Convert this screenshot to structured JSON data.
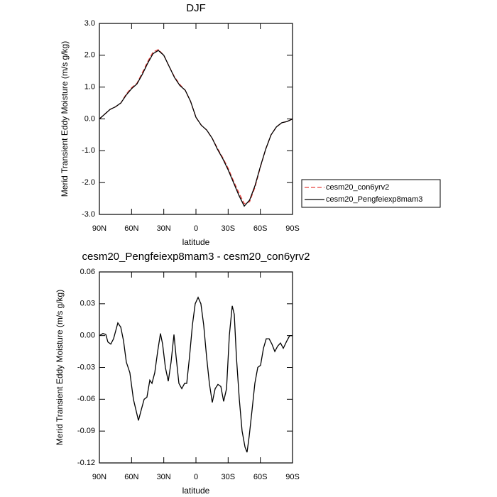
{
  "chart_data": [
    {
      "type": "line",
      "title": "DJF",
      "x_label": "latitude",
      "y_label": "Merid Transient Eddy Moisture (m/s g/kg)",
      "x": [
        90,
        85,
        80,
        75,
        70,
        65,
        60,
        55,
        50,
        45,
        40,
        35,
        30,
        25,
        20,
        15,
        10,
        5,
        0,
        -5,
        -10,
        -15,
        -20,
        -25,
        -30,
        -35,
        -40,
        -45,
        -50,
        -55,
        -60,
        -65,
        -70,
        -75,
        -80,
        -85,
        -90
      ],
      "series": [
        {
          "name": "cesm20_con6yrv2",
          "color": "#e8403c",
          "dashed": true,
          "values": [
            0.0,
            0.15,
            0.3,
            0.38,
            0.5,
            0.78,
            0.98,
            1.12,
            1.45,
            1.8,
            2.1,
            2.18,
            2.0,
            1.65,
            1.32,
            1.08,
            0.9,
            0.55,
            0.05,
            -0.2,
            -0.35,
            -0.6,
            -0.92,
            -1.22,
            -1.55,
            -1.95,
            -2.32,
            -2.66,
            -2.6,
            -2.15,
            -1.52,
            -0.95,
            -0.5,
            -0.25,
            -0.12,
            -0.08,
            0.0
          ]
        },
        {
          "name": "cesm20_Pengfeiexp8mam3",
          "color": "#000000",
          "dashed": false,
          "values": [
            0.0,
            0.15,
            0.3,
            0.38,
            0.5,
            0.75,
            0.95,
            1.1,
            1.4,
            1.75,
            2.05,
            2.15,
            2.0,
            1.65,
            1.3,
            1.05,
            0.9,
            0.55,
            0.05,
            -0.2,
            -0.35,
            -0.6,
            -0.95,
            -1.25,
            -1.6,
            -2.0,
            -2.4,
            -2.74,
            -2.55,
            -2.1,
            -1.5,
            -0.95,
            -0.5,
            -0.25,
            -0.12,
            -0.08,
            0.0
          ]
        }
      ],
      "xlim": [
        90,
        -90
      ],
      "xticks": [
        {
          "value": 90,
          "label": "90N"
        },
        {
          "value": 60,
          "label": "60N"
        },
        {
          "value": 30,
          "label": "30N"
        },
        0,
        {
          "value": -30,
          "label": "30S"
        },
        {
          "value": -60,
          "label": "60S"
        },
        {
          "value": -90,
          "label": "90S"
        }
      ],
      "ylim": [
        -3,
        3
      ],
      "yticks": [
        {
          "value": 3,
          "label": "3.0"
        },
        {
          "value": 2,
          "label": "2.0"
        },
        {
          "value": 1,
          "label": "1.0"
        },
        {
          "value": 0,
          "label": "0.0"
        },
        {
          "value": -1,
          "label": "-1.0"
        },
        {
          "value": -2,
          "label": "-2.0"
        },
        {
          "value": -3,
          "label": "-3.0"
        }
      ],
      "legend": "right"
    },
    {
      "type": "line",
      "title": "cesm20_Pengfeiexp8mam3 - cesm20_con6yrv2",
      "x_label": "latitude",
      "y_label": "Merid Transient Eddy Moisture (m/s g/kg)",
      "x": [
        90,
        86.7,
        84.0,
        82.1,
        79.4,
        76.8,
        72.8,
        70.1,
        67.5,
        64.9,
        61.6,
        58.3,
        53.6,
        51.0,
        48.3,
        45.7,
        43.0,
        41.0,
        38.4,
        35.7,
        33.1,
        31.1,
        28.5,
        25.8,
        23.2,
        20.5,
        18.5,
        15.9,
        13.2,
        10.6,
        8.6,
        6.0,
        3.3,
        0.7,
        -2.0,
        -4.6,
        -7.2,
        -9.9,
        -12.5,
        -15.2,
        -17.9,
        -20.5,
        -23.2,
        -25.8,
        -28.5,
        -31.1,
        -33.8,
        -35.7,
        -37.7,
        -40.4,
        -43.0,
        -45.7,
        -47.6,
        -49.6,
        -52.3,
        -54.9,
        -57.6,
        -60.2,
        -62.9,
        -65.5,
        -68.2,
        -70.8,
        -73.5,
        -76.1,
        -78.8,
        -81.4,
        -84.7,
        -87.4,
        -90
      ],
      "series": [
        {
          "color": "#000000",
          "dashed": false,
          "values": [
            0.0,
            0.002,
            0.001,
            -0.006,
            -0.008,
            -0.003,
            0.012,
            0.008,
            -0.005,
            -0.025,
            -0.035,
            -0.06,
            -0.08,
            -0.07,
            -0.06,
            -0.058,
            -0.042,
            -0.045,
            -0.035,
            -0.015,
            0.002,
            -0.008,
            -0.03,
            -0.043,
            -0.025,
            0.001,
            -0.02,
            -0.045,
            -0.05,
            -0.045,
            -0.045,
            -0.02,
            0.01,
            0.03,
            0.036,
            0.03,
            0.01,
            -0.02,
            -0.045,
            -0.063,
            -0.05,
            -0.046,
            -0.048,
            -0.062,
            -0.05,
            0.0,
            0.028,
            0.02,
            -0.02,
            -0.06,
            -0.09,
            -0.105,
            -0.11,
            -0.095,
            -0.07,
            -0.045,
            -0.03,
            -0.028,
            -0.012,
            -0.003,
            -0.003,
            -0.008,
            -0.015,
            -0.01,
            -0.007,
            -0.012,
            -0.005,
            0.0,
            0.0
          ]
        }
      ],
      "xlim": [
        90,
        -90
      ],
      "xticks": [
        {
          "value": 90,
          "label": "90N"
        },
        {
          "value": 60,
          "label": "60N"
        },
        {
          "value": 30,
          "label": "30N"
        },
        0,
        {
          "value": -30,
          "label": "30S"
        },
        {
          "value": -60,
          "label": "60S"
        },
        {
          "value": -90,
          "label": "90S"
        }
      ],
      "ylim": [
        -0.12,
        0.06
      ],
      "yticks": [
        0.06,
        0.03,
        {
          "value": 0,
          "label": "0.00"
        },
        -0.03,
        -0.06,
        -0.09,
        -0.12
      ]
    }
  ]
}
